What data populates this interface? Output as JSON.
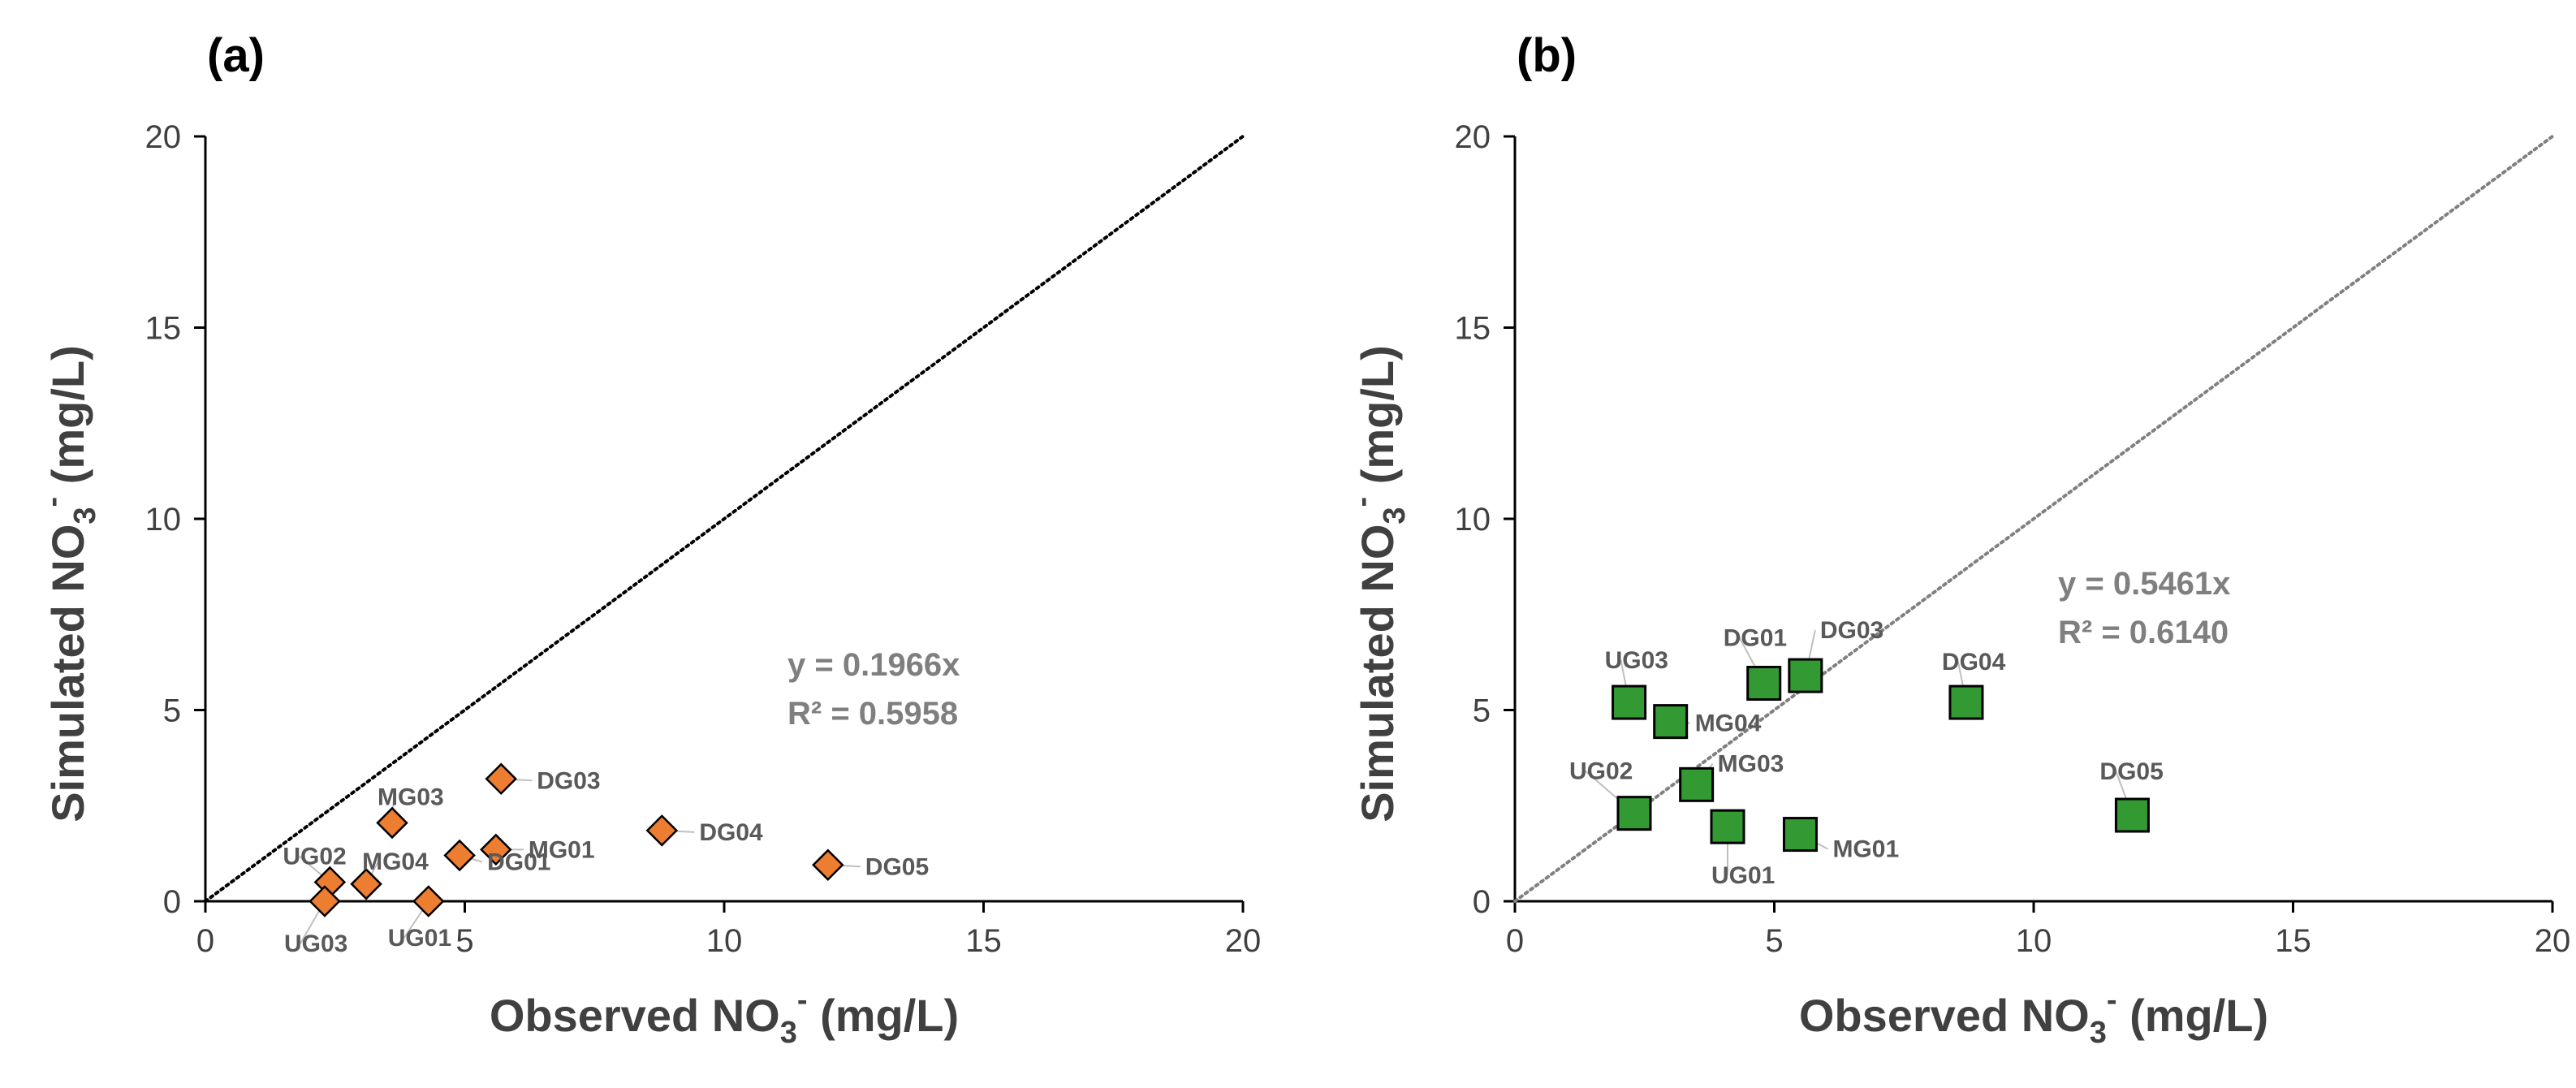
{
  "chart_data": [
    {
      "type": "scatter",
      "panel_label": "(a)",
      "title": "",
      "xlabel": {
        "base": "Observed NO",
        "sub": "3",
        "sup": "-",
        "unit": " (mg/L)"
      },
      "ylabel": {
        "base": "Simulated NO",
        "sub": "3",
        "sup": "-",
        "unit": " (mg/L)"
      },
      "xlim": [
        0,
        20
      ],
      "ylim": [
        0,
        20
      ],
      "x_ticks": [
        "0",
        "5",
        "10",
        "15",
        "20"
      ],
      "y_ticks": [
        "0",
        "5",
        "10",
        "15",
        "20"
      ],
      "marker": "diamond",
      "color": "#ED7D31",
      "line_color": "#000000",
      "equation": "y = 0.1966x",
      "r2": "R² = 0.5958",
      "points": [
        {
          "name": "UG01",
          "x": 4.3,
          "y": 0.0
        },
        {
          "name": "UG02",
          "x": 2.4,
          "y": 0.5
        },
        {
          "name": "UG03",
          "x": 2.3,
          "y": 0.0
        },
        {
          "name": "MG01",
          "x": 5.6,
          "y": 1.35
        },
        {
          "name": "MG03",
          "x": 3.6,
          "y": 2.05
        },
        {
          "name": "MG04",
          "x": 3.1,
          "y": 0.45
        },
        {
          "name": "DG01",
          "x": 4.9,
          "y": 1.2
        },
        {
          "name": "DG03",
          "x": 5.7,
          "y": 3.2
        },
        {
          "name": "DG04",
          "x": 8.8,
          "y": 1.85
        },
        {
          "name": "DG05",
          "x": 12.0,
          "y": 0.95
        }
      ]
    },
    {
      "type": "scatter",
      "panel_label": "(b)",
      "title": "",
      "xlabel": {
        "base": "Observed NO",
        "sub": "3",
        "sup": "-",
        "unit": " (mg/L)"
      },
      "ylabel": {
        "base": "Simulated NO",
        "sub": "3",
        "sup": "-",
        "unit": " (mg/L)"
      },
      "xlim": [
        0,
        20
      ],
      "ylim": [
        0,
        20
      ],
      "x_ticks": [
        "0",
        "5",
        "10",
        "15",
        "20"
      ],
      "y_ticks": [
        "0",
        "5",
        "10",
        "15",
        "20"
      ],
      "marker": "square",
      "color": "#339933",
      "line_color": "#808080",
      "equation": "y = 0.5461x",
      "r2": "R² = 0.6140",
      "points": [
        {
          "name": "UG01",
          "x": 4.1,
          "y": 1.95
        },
        {
          "name": "UG02",
          "x": 2.3,
          "y": 2.3
        },
        {
          "name": "UG03",
          "x": 2.2,
          "y": 5.2
        },
        {
          "name": "MG01",
          "x": 5.5,
          "y": 1.75
        },
        {
          "name": "MG03",
          "x": 3.5,
          "y": 3.05
        },
        {
          "name": "MG04",
          "x": 3.0,
          "y": 4.7
        },
        {
          "name": "DG01",
          "x": 4.8,
          "y": 5.7
        },
        {
          "name": "DG03",
          "x": 5.6,
          "y": 5.9
        },
        {
          "name": "DG04",
          "x": 8.7,
          "y": 5.2
        },
        {
          "name": "DG05",
          "x": 11.9,
          "y": 2.25
        }
      ]
    }
  ]
}
